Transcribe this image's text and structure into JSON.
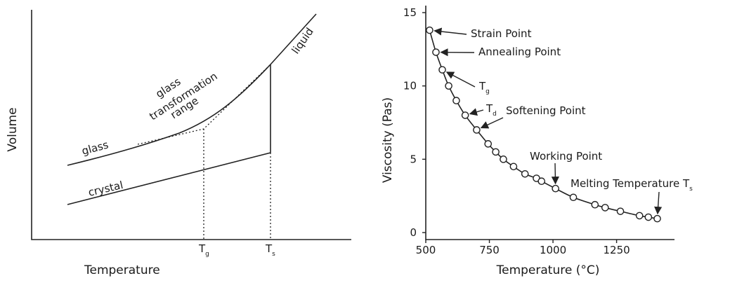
{
  "chart_data": [
    {
      "type": "line",
      "xlabel": "Temperature",
      "ylabel": "Volume",
      "x_ticks": [
        {
          "label": "T",
          "sub": "g"
        },
        {
          "label": "T",
          "sub": "s"
        }
      ],
      "curve_labels": {
        "glass": "glass",
        "crystal": "crystal",
        "liquid": "liquid",
        "range_line1": "glass",
        "range_line2": "transformation",
        "range_line3": "range"
      },
      "series": [
        {
          "name": "glass",
          "x": [
            0.0,
            0.35,
            0.55,
            0.75,
            1.0
          ],
          "y": [
            0.38,
            0.46,
            0.56,
            0.72,
            1.0
          ]
        },
        {
          "name": "crystal",
          "x": [
            0.0,
            0.85
          ],
          "y": [
            0.17,
            0.47
          ]
        }
      ]
    },
    {
      "type": "scatter",
      "xlabel": "Temperature (°C)",
      "ylabel": "Viscosity (Pas)",
      "xlim": [
        500,
        1450
      ],
      "ylim": [
        0,
        15
      ],
      "xticks": [
        500,
        750,
        1000,
        1250
      ],
      "yticks": [
        0,
        5,
        10,
        15
      ],
      "points": [
        {
          "x": 515,
          "y": 13.8
        },
        {
          "x": 540,
          "y": 12.3
        },
        {
          "x": 565,
          "y": 11.1
        },
        {
          "x": 590,
          "y": 10.0
        },
        {
          "x": 620,
          "y": 9.0
        },
        {
          "x": 655,
          "y": 8.0
        },
        {
          "x": 700,
          "y": 7.0
        },
        {
          "x": 745,
          "y": 6.05
        },
        {
          "x": 775,
          "y": 5.5
        },
        {
          "x": 805,
          "y": 5.0
        },
        {
          "x": 845,
          "y": 4.5
        },
        {
          "x": 890,
          "y": 4.0
        },
        {
          "x": 935,
          "y": 3.7
        },
        {
          "x": 955,
          "y": 3.5
        },
        {
          "x": 1010,
          "y": 3.0
        },
        {
          "x": 1080,
          "y": 2.4
        },
        {
          "x": 1165,
          "y": 1.9
        },
        {
          "x": 1205,
          "y": 1.7
        },
        {
          "x": 1265,
          "y": 1.45
        },
        {
          "x": 1340,
          "y": 1.15
        },
        {
          "x": 1375,
          "y": 1.05
        },
        {
          "x": 1410,
          "y": 0.95
        }
      ],
      "annotations": [
        {
          "text": "Strain Point",
          "sub": ""
        },
        {
          "text": "Annealing Point",
          "sub": ""
        },
        {
          "text": "T",
          "sub": "g"
        },
        {
          "text": "T",
          "sub": "d"
        },
        {
          "text": "Softening Point",
          "sub": ""
        },
        {
          "text": "Working Point",
          "sub": ""
        },
        {
          "text": "Melting Temperature T",
          "sub": "s"
        }
      ]
    }
  ]
}
